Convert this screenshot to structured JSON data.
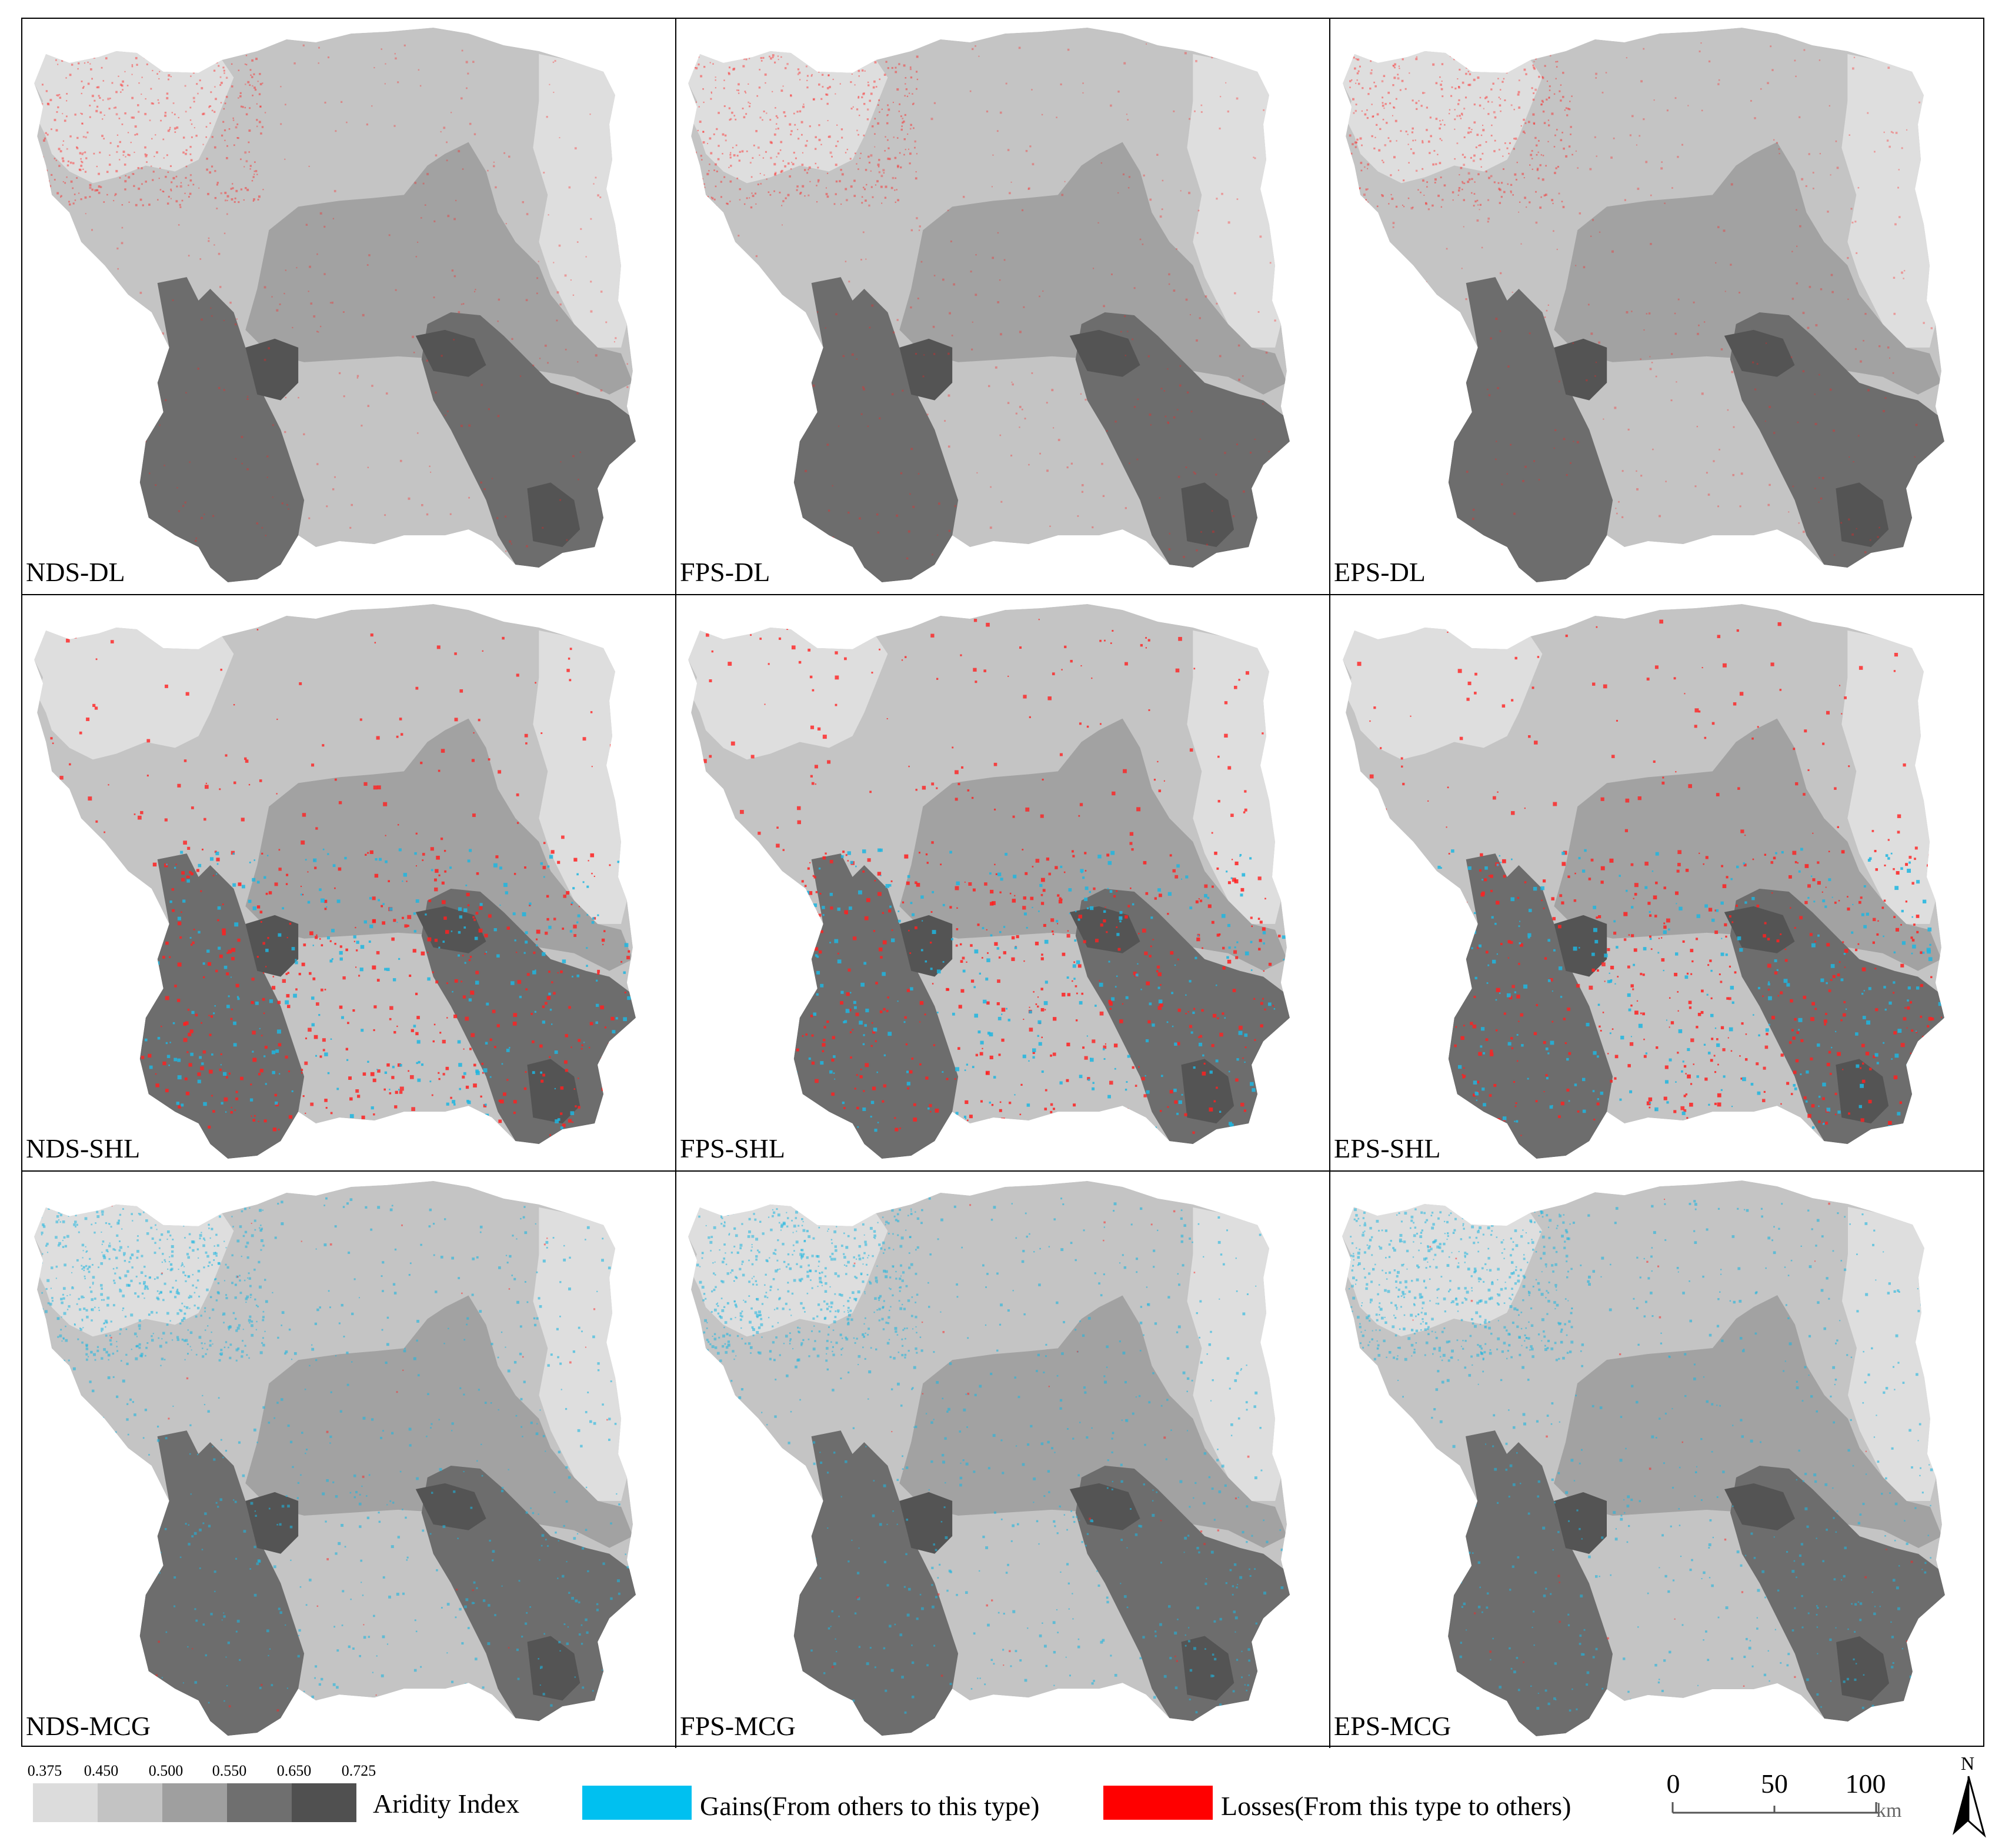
{
  "panels": [
    {
      "label": "NDS-DL",
      "change": "loss-fine"
    },
    {
      "label": "FPS-DL",
      "change": "loss-fine"
    },
    {
      "label": "EPS-DL",
      "change": "loss-fine"
    },
    {
      "label": "NDS-SHL",
      "change": "mixed"
    },
    {
      "label": "FPS-SHL",
      "change": "mixed"
    },
    {
      "label": "EPS-SHL",
      "change": "mixed"
    },
    {
      "label": "NDS-MCG",
      "change": "gain"
    },
    {
      "label": "FPS-MCG",
      "change": "gain"
    },
    {
      "label": "EPS-MCG",
      "change": "gain"
    }
  ],
  "legend": {
    "aridity": {
      "title": "Aridity Index",
      "ticks": [
        "0.375",
        "0.450",
        "0.500",
        "0.550",
        "0.650",
        "0.725"
      ],
      "colors": [
        "#dcdcdc",
        "#c3c3c3",
        "#9f9f9f",
        "#6f6f6f",
        "#505050"
      ]
    },
    "gains": {
      "label": "Gains(From others to this type)",
      "color": "#00c0f0"
    },
    "losses": {
      "label": "Losses(From this type to others)",
      "color": "#ff0000"
    },
    "scale": {
      "ticks": [
        "0",
        "50",
        "100"
      ],
      "unit": "km"
    },
    "north": "N"
  },
  "colors": {
    "zone1": "#dedede",
    "zone2": "#c4c4c4",
    "zone3": "#a2a2a2",
    "zone4": "#6d6d6d",
    "zone5": "#545454",
    "gain": "#1eb6e0",
    "loss": "#ff2020"
  }
}
